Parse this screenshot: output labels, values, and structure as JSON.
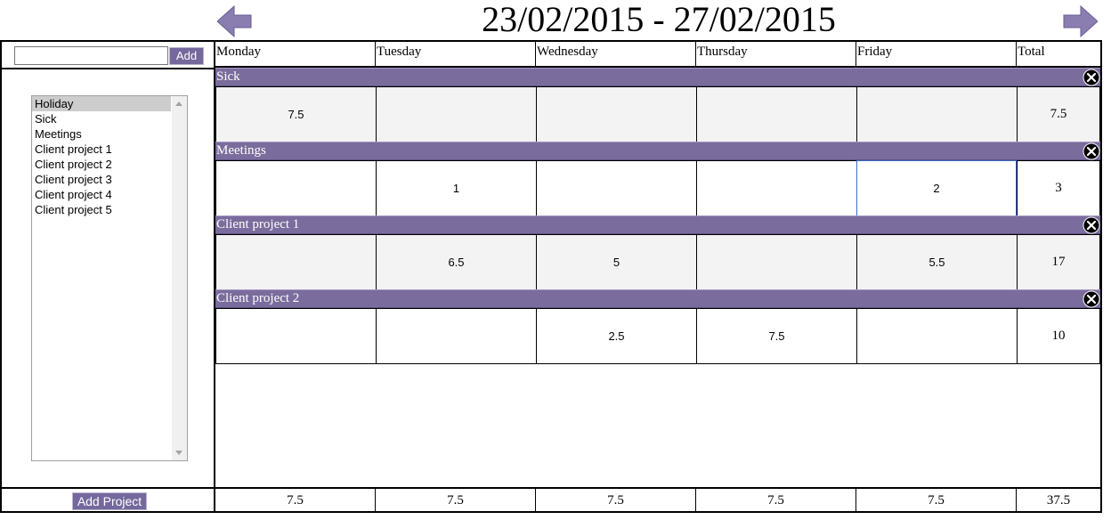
{
  "header": {
    "title": "23/02/2015 - 27/02/2015",
    "prev_icon": "left-arrow-icon",
    "next_icon": "right-arrow-icon",
    "accent_color": "#7a6c9c"
  },
  "sidebar": {
    "new_item_value": "",
    "add_label": "Add",
    "items": [
      "Holiday",
      "Sick",
      "Meetings",
      "Client project 1",
      "Client project 2",
      "Client project 3",
      "Client project 4",
      "Client project 5"
    ],
    "selected": "Holiday",
    "add_project_label": "Add Project"
  },
  "grid": {
    "columns": [
      "Monday",
      "Tuesday",
      "Wednesday",
      "Thursday",
      "Friday",
      "Total"
    ],
    "rows": [
      {
        "name": "Sick",
        "cells": [
          "7.5",
          "",
          "",
          "",
          ""
        ],
        "total": "7.5"
      },
      {
        "name": "Meetings",
        "cells": [
          "",
          "1",
          "",
          "",
          "2"
        ],
        "total": "3"
      },
      {
        "name": "Client project 1",
        "cells": [
          "",
          "6.5",
          "5",
          "",
          "5.5"
        ],
        "total": "17"
      },
      {
        "name": "Client project 2",
        "cells": [
          "",
          "",
          "2.5",
          "7.5",
          ""
        ],
        "total": "10"
      }
    ],
    "footer_totals": [
      "7.5",
      "7.5",
      "7.5",
      "7.5",
      "7.5",
      "37.5"
    ],
    "remove_icon": "close-circle-icon"
  }
}
